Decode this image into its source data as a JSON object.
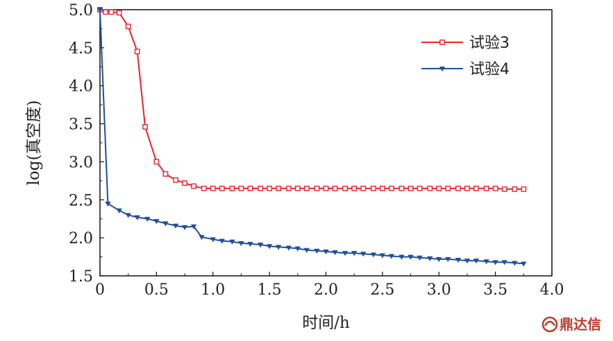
{
  "chart_data": {
    "type": "line",
    "xlabel": "时间/h",
    "ylabel": "log(真空度)",
    "xlim": [
      0,
      4.0
    ],
    "ylim": [
      1.5,
      5.0
    ],
    "xticks": [
      "0",
      "0.5",
      "1.0",
      "1.5",
      "2.0",
      "2.5",
      "3.0",
      "3.5",
      "4.0"
    ],
    "yticks": [
      "1.5",
      "2.0",
      "2.5",
      "3.0",
      "3.5",
      "4.0",
      "4.5",
      "5.0"
    ],
    "grid": false,
    "legend_position": "top-right",
    "series": [
      {
        "name": "试验3",
        "color": "#e8232a",
        "marker": "square-open",
        "x": [
          0.0,
          0.05,
          0.1,
          0.17,
          0.25,
          0.33,
          0.4,
          0.5,
          0.58,
          0.67,
          0.75,
          0.83,
          0.92,
          1.0,
          1.08,
          1.17,
          1.25,
          1.33,
          1.42,
          1.5,
          1.58,
          1.67,
          1.75,
          1.83,
          1.92,
          2.0,
          2.08,
          2.17,
          2.25,
          2.33,
          2.42,
          2.5,
          2.58,
          2.67,
          2.75,
          2.83,
          2.92,
          3.0,
          3.08,
          3.17,
          3.25,
          3.33,
          3.42,
          3.5,
          3.58,
          3.67,
          3.75
        ],
        "y": [
          5.0,
          4.97,
          4.97,
          4.96,
          4.78,
          4.45,
          3.46,
          3.0,
          2.84,
          2.76,
          2.72,
          2.68,
          2.65,
          2.65,
          2.65,
          2.65,
          2.65,
          2.65,
          2.65,
          2.65,
          2.65,
          2.65,
          2.65,
          2.65,
          2.65,
          2.65,
          2.65,
          2.65,
          2.65,
          2.65,
          2.65,
          2.65,
          2.65,
          2.65,
          2.65,
          2.65,
          2.65,
          2.65,
          2.65,
          2.65,
          2.65,
          2.65,
          2.65,
          2.65,
          2.64,
          2.64,
          2.64
        ]
      },
      {
        "name": "试验4",
        "color": "#1f4e9c",
        "marker": "triangle-down",
        "x": [
          0.0,
          0.07,
          0.17,
          0.25,
          0.33,
          0.42,
          0.5,
          0.58,
          0.67,
          0.75,
          0.83,
          0.9,
          1.0,
          1.08,
          1.17,
          1.25,
          1.33,
          1.42,
          1.5,
          1.58,
          1.67,
          1.75,
          1.83,
          1.92,
          2.0,
          2.08,
          2.17,
          2.25,
          2.33,
          2.42,
          2.5,
          2.58,
          2.67,
          2.75,
          2.83,
          2.92,
          3.0,
          3.08,
          3.17,
          3.25,
          3.33,
          3.42,
          3.5,
          3.58,
          3.67,
          3.75
        ],
        "y": [
          5.0,
          2.45,
          2.36,
          2.3,
          2.27,
          2.25,
          2.22,
          2.19,
          2.16,
          2.14,
          2.15,
          2.01,
          1.98,
          1.96,
          1.95,
          1.93,
          1.92,
          1.91,
          1.89,
          1.88,
          1.87,
          1.86,
          1.84,
          1.83,
          1.82,
          1.81,
          1.8,
          1.8,
          1.79,
          1.78,
          1.77,
          1.76,
          1.75,
          1.75,
          1.74,
          1.73,
          1.72,
          1.72,
          1.71,
          1.7,
          1.7,
          1.69,
          1.68,
          1.68,
          1.67,
          1.66
        ]
      }
    ]
  },
  "watermark": {
    "icon": "dingdaxin-logo-icon",
    "text": "鼎达信",
    "color": "#c0392b"
  }
}
